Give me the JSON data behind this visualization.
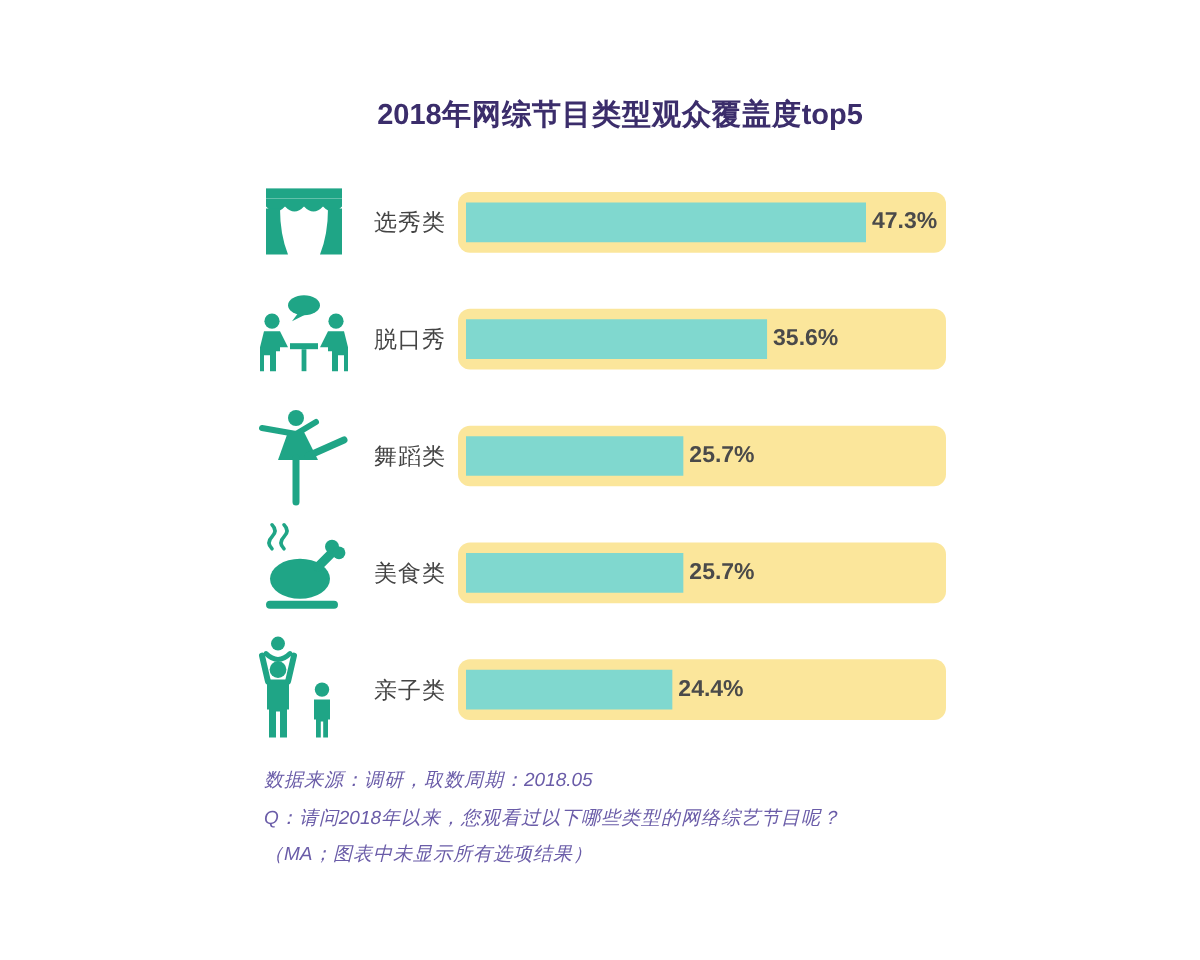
{
  "chart_data": {
    "type": "bar",
    "orientation": "horizontal",
    "title": "2018年网综节目类型观众覆盖度top5",
    "categories": [
      "选秀类",
      "脱口秀",
      "舞蹈类",
      "美食类",
      "亲子类"
    ],
    "values": [
      47.3,
      35.6,
      25.7,
      25.7,
      24.4
    ],
    "color": "#80d8cf",
    "value_labels": [
      "47.3%",
      "35.6%",
      "25.7%",
      "25.7%",
      "24.4%"
    ],
    "tick_labels": "y",
    "annotations": [
      "数据来源：调研，取数周期：2018.05",
      "Q：请问2018年以来，您观看过以下哪些类型的网络综艺节目呢？",
      "（MA；图表中未显示所有选项结果）"
    ]
  }
}
